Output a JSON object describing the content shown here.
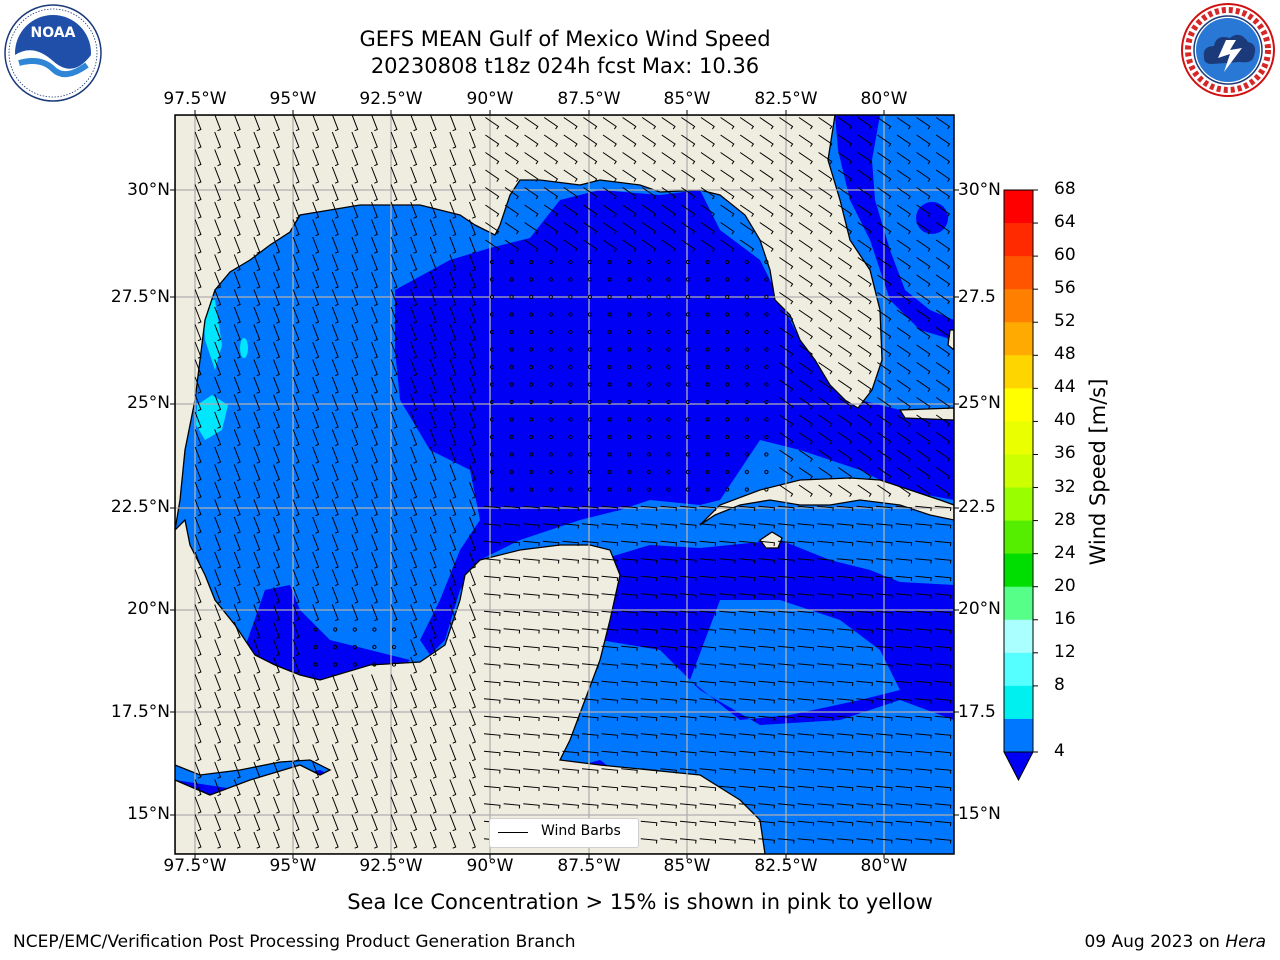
{
  "header": {
    "title_line1": "GEFS MEAN Gulf of Mexico Wind Speed",
    "title_line2": "20230808 t18z 024h fcst   Max: 10.36"
  },
  "logos": {
    "left": {
      "name": "noaa-logo",
      "text": "NOAA",
      "ring_text": "NATIONAL OCEANIC AND ATMOSPHERIC ADMINISTRATION · U.S. DEPARTMENT OF COMMERCE"
    },
    "right": {
      "name": "nws-logo",
      "ring_text": "NATIONAL WEATHER SERVICE"
    }
  },
  "map": {
    "lon_labels": [
      "97.5°W",
      "95°W",
      "92.5°W",
      "90°W",
      "87.5°W",
      "85°W",
      "82.5°W",
      "80°W"
    ],
    "lat_labels": [
      "30°N",
      "27.5°N",
      "25°N",
      "22.5°N",
      "20°N",
      "17.5°N",
      "15°N"
    ],
    "lat_labels_right": [
      "30°N",
      "27.5",
      "25°N",
      "22.5",
      "20°N",
      "17.5",
      "15°N"
    ],
    "legend_label": "Wind Barbs",
    "colors": {
      "land": "#efeddf",
      "speed_4_8": "#0077ff",
      "speed_0_4": "#0000f5",
      "speed_8_12": "#00e6ff",
      "coast": "#000000",
      "grid": "#b0b0b0"
    }
  },
  "colorbar": {
    "label": "Wind Speed [m/s]",
    "ticks": [
      "68",
      "64",
      "60",
      "56",
      "52",
      "48",
      "44",
      "40",
      "36",
      "32",
      "28",
      "24",
      "20",
      "16",
      "12",
      "8",
      "4"
    ],
    "colors": [
      "#ff0000",
      "#ff2a00",
      "#ff5500",
      "#ff8000",
      "#ffaa00",
      "#ffd500",
      "#ffff00",
      "#eaff00",
      "#ccff00",
      "#99ff00",
      "#55ee00",
      "#00dd00",
      "#55ff88",
      "#aaffff",
      "#55ffff",
      "#00f0f0",
      "#0077ff"
    ],
    "under_color": "#0000f5"
  },
  "footer": {
    "note": "Sea Ice Concentration > 15% is shown in pink to yellow",
    "credit_left": "NCEP/EMC/Verification Post Processing Product Generation Branch",
    "credit_date": "09 Aug 2023 on",
    "credit_host": "Hera"
  }
}
